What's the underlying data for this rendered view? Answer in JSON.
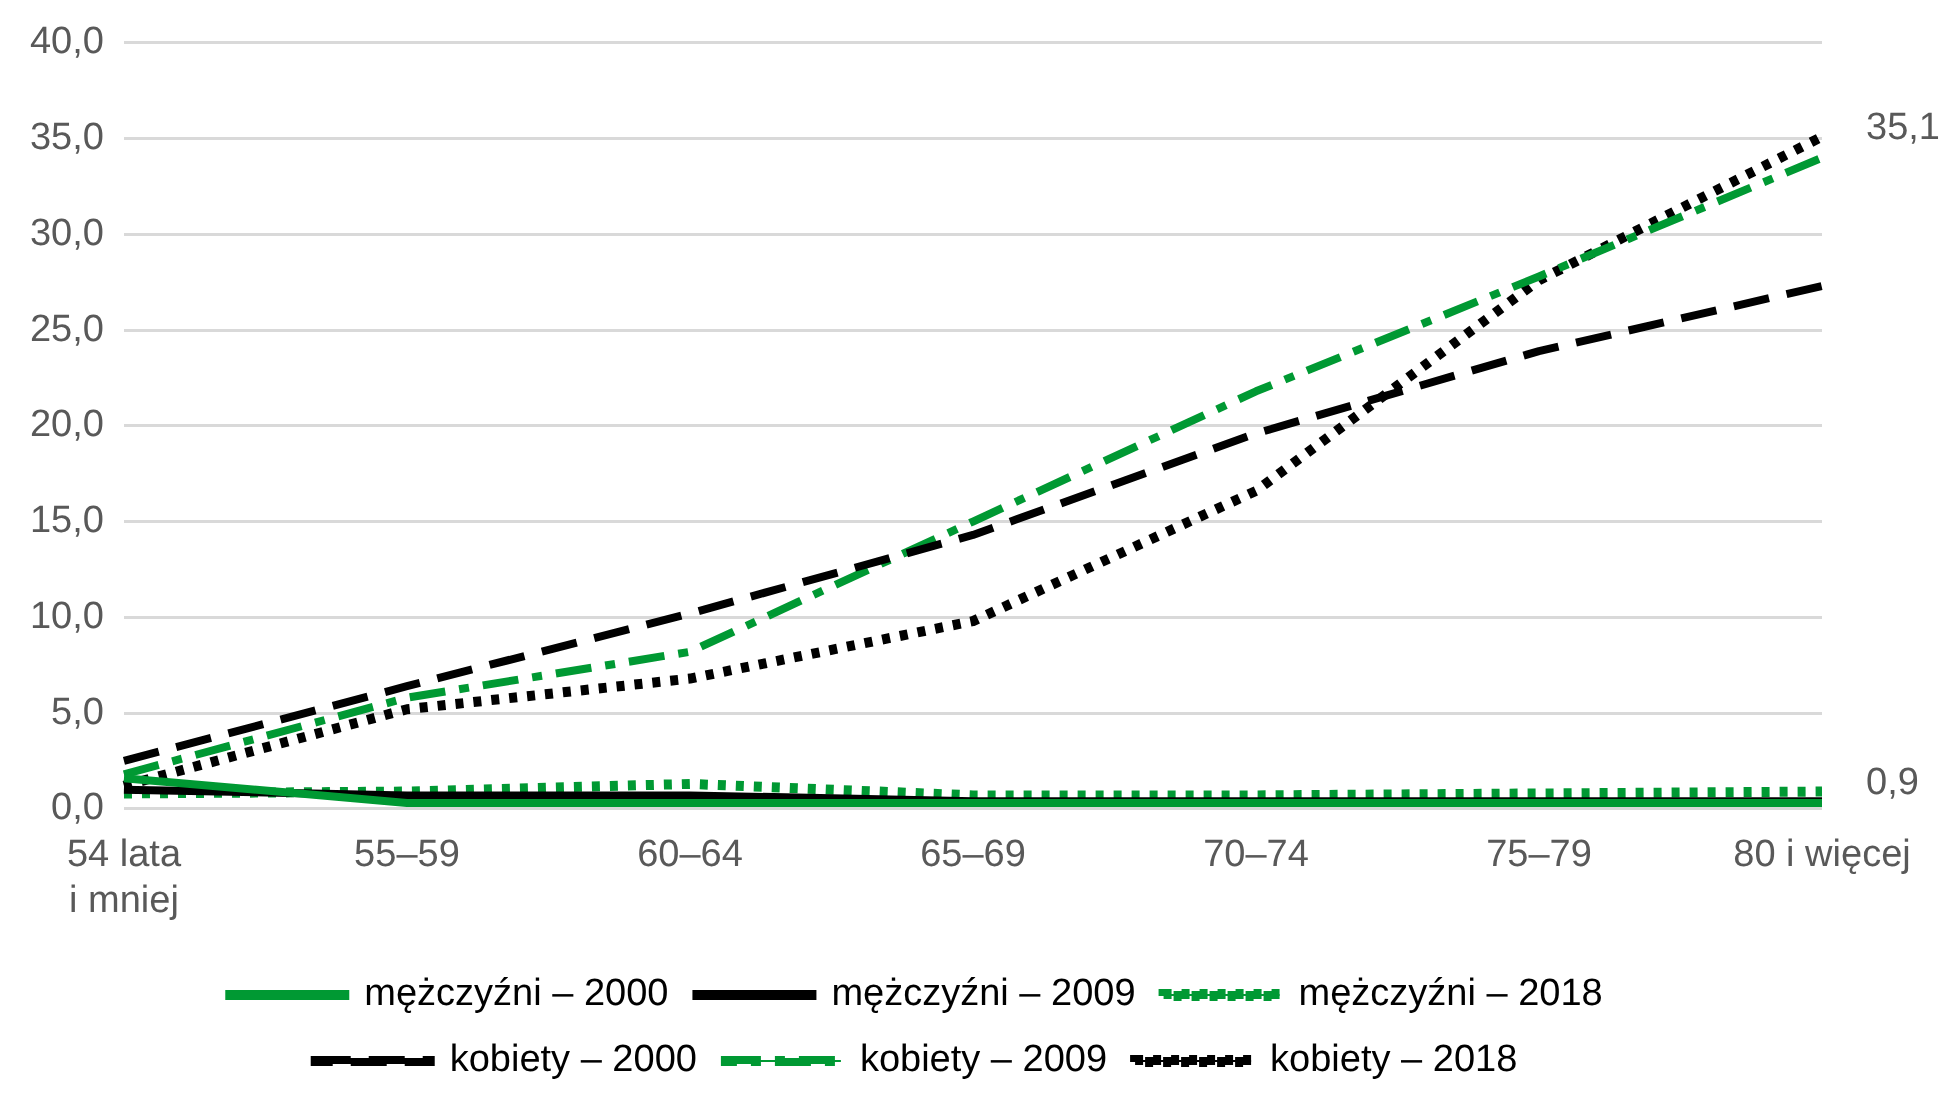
{
  "chart_data": {
    "type": "line",
    "categories": [
      "54 lata\ni mniej",
      "55–59",
      "60–64",
      "65–69",
      "70–74",
      "75–79",
      "80 i więcej"
    ],
    "series": [
      {
        "name": "mężczyźni – 2000",
        "color": "#009933",
        "line_style": "solid",
        "values": [
          1.6,
          0.3,
          0.3,
          0.3,
          0.3,
          0.3,
          0.3
        ]
      },
      {
        "name": "mężczyźni – 2009",
        "color": "#000000",
        "line_style": "solid",
        "values": [
          1.0,
          0.7,
          0.7,
          0.4,
          0.4,
          0.4,
          0.4
        ]
      },
      {
        "name": "mężczyźni – 2018",
        "color": "#009933",
        "line_style": "dotted",
        "values": [
          0.8,
          0.9,
          1.3,
          0.7,
          0.7,
          0.8,
          0.9
        ],
        "value_labels": [
          null,
          null,
          null,
          null,
          null,
          null,
          "0,9"
        ]
      },
      {
        "name": "kobiety – 2000",
        "color": "#000000",
        "line_style": "dashed",
        "values": [
          2.5,
          6.4,
          10.2,
          14.3,
          19.6,
          23.9,
          27.3
        ]
      },
      {
        "name": "kobiety – 2009",
        "color": "#009933",
        "line_style": "dashdot",
        "values": [
          1.8,
          5.8,
          8.2,
          15.0,
          21.8,
          27.8,
          34.0
        ]
      },
      {
        "name": "kobiety – 2018",
        "color": "#000000",
        "line_style": "dotted",
        "values": [
          1.2,
          5.2,
          6.8,
          9.8,
          16.6,
          27.6,
          35.1
        ],
        "value_labels": [
          null,
          null,
          null,
          null,
          null,
          null,
          "35,1"
        ]
      }
    ],
    "ylim": [
      0,
      40
    ],
    "yticks": [
      {
        "value": 0,
        "label": "0,0"
      },
      {
        "value": 5,
        "label": "5,0"
      },
      {
        "value": 10,
        "label": "10,0"
      },
      {
        "value": 15,
        "label": "15,0"
      },
      {
        "value": 20,
        "label": "20,0"
      },
      {
        "value": 25,
        "label": "25,0"
      },
      {
        "value": 30,
        "label": "30,0"
      },
      {
        "value": 35,
        "label": "35,0"
      },
      {
        "value": 40,
        "label": "40,0"
      }
    ],
    "grid": "y",
    "legend": "bottom",
    "marker": "none"
  }
}
